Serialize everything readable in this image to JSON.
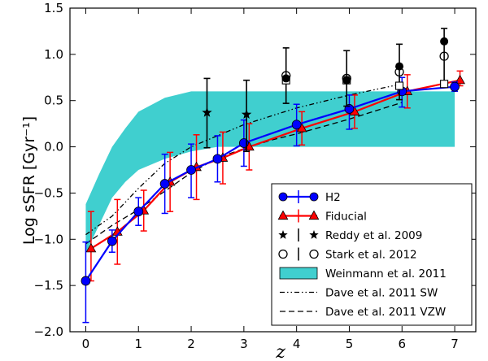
{
  "chart_data": {
    "type": "line",
    "xlabel": "z",
    "ylabel": "Log sSFR [Gyr⁻¹]",
    "xlim": [
      -0.3,
      7.4
    ],
    "ylim": [
      -2.0,
      1.5
    ],
    "x_ticks": [
      0,
      1,
      2,
      3,
      4,
      5,
      6,
      7
    ],
    "y_ticks": [
      -2.0,
      -1.5,
      -1.0,
      -0.5,
      0.0,
      0.5,
      1.0,
      1.5
    ],
    "x_tick_labels": [
      "0",
      "1",
      "2",
      "3",
      "4",
      "5",
      "6",
      "7"
    ],
    "y_tick_labels": [
      "−2.0",
      "−1.5",
      "−1.0",
      "−0.5",
      "0.0",
      "0.5",
      "1.0",
      "1.5"
    ],
    "legend_position": "lower-right",
    "colors": {
      "h2": "#0000ff",
      "fiducial": "#ff0000",
      "band": "#40cfcf",
      "black": "#000000"
    },
    "band": {
      "name": "Weinmann et al. 2011",
      "x": [
        0,
        0.25,
        0.5,
        0.75,
        1.0,
        1.5,
        2.0,
        2.5,
        3.0,
        4.0,
        5.0,
        6.0,
        7.0
      ],
      "upper": [
        -0.62,
        -0.3,
        0.0,
        0.2,
        0.38,
        0.53,
        0.6,
        0.6,
        0.6,
        0.6,
        0.6,
        0.6,
        0.6
      ],
      "lower": [
        -1.15,
        -0.85,
        -0.55,
        -0.38,
        -0.25,
        -0.13,
        -0.05,
        0.0,
        0.0,
        0.0,
        0.0,
        0.0,
        0.0
      ]
    },
    "series": [
      {
        "name": "H2",
        "x": [
          0.0,
          0.5,
          1.0,
          1.5,
          2.0,
          2.5,
          3.0,
          4.0,
          5.0,
          6.0,
          7.0
        ],
        "y": [
          -1.45,
          -1.02,
          -0.7,
          -0.4,
          -0.25,
          -0.13,
          0.04,
          0.24,
          0.41,
          0.6,
          0.65
        ],
        "err_lo": [
          0.45,
          0.12,
          0.15,
          0.32,
          0.3,
          0.25,
          0.25,
          0.23,
          0.22,
          0.17,
          0.05
        ],
        "err_hi": [
          0.42,
          0.12,
          0.15,
          0.32,
          0.28,
          0.25,
          0.25,
          0.22,
          0.15,
          0.15,
          0.05
        ]
      },
      {
        "name": "Fiducial",
        "x": [
          0.1,
          0.6,
          1.1,
          1.6,
          2.1,
          2.6,
          3.1,
          4.1,
          5.1,
          6.1,
          7.1
        ],
        "y": [
          -1.1,
          -0.92,
          -0.69,
          -0.38,
          -0.22,
          -0.12,
          0.0,
          0.2,
          0.38,
          0.6,
          0.72
        ],
        "err_lo": [
          0.35,
          0.35,
          0.22,
          0.32,
          0.35,
          0.28,
          0.25,
          0.18,
          0.18,
          0.18,
          0.06
        ],
        "err_hi": [
          0.4,
          0.35,
          0.22,
          0.32,
          0.35,
          0.28,
          0.25,
          0.18,
          0.18,
          0.18,
          0.1
        ]
      },
      {
        "name": "Reddy et al. 2009",
        "x": [
          2.3,
          3.05
        ],
        "y": [
          0.37,
          0.35
        ],
        "err_lo": [
          0.38,
          0.4
        ],
        "err_hi": [
          0.37,
          0.37
        ]
      },
      {
        "name": "Stark et al. 2012",
        "x": [
          3.8,
          4.95,
          5.95,
          6.8
        ],
        "y": [
          0.77,
          0.74,
          0.81,
          0.98
        ],
        "err_lo": [
          0.3,
          0.3,
          0.3,
          0.3
        ],
        "err_hi": [
          0.3,
          0.3,
          0.3,
          0.3
        ],
        "filled_markers": {
          "x": [
            3.8,
            4.95,
            5.95,
            6.8
          ],
          "y": [
            0.74,
            0.72,
            0.87,
            1.14
          ]
        },
        "square_markers": {
          "x": [
            3.8,
            4.95,
            5.95,
            6.8
          ],
          "y": [
            0.72,
            0.72,
            0.66,
            0.68
          ]
        }
      },
      {
        "name": "Dave et al. 2011 SW",
        "x": [
          0.0,
          0.5,
          1.0,
          1.5,
          2.0,
          2.5,
          3.0,
          3.5,
          4.0,
          5.0,
          6.0
        ],
        "y": [
          -0.95,
          -0.75,
          -0.45,
          -0.18,
          0.0,
          0.12,
          0.24,
          0.33,
          0.42,
          0.56,
          0.68
        ]
      },
      {
        "name": "Dave et al. 2011 VZW",
        "x": [
          0.0,
          0.5,
          1.0,
          1.5,
          2.0,
          2.5,
          3.0,
          3.5,
          4.0,
          5.0,
          6.0
        ],
        "y": [
          -1.05,
          -0.85,
          -0.68,
          -0.48,
          -0.28,
          -0.12,
          -0.02,
          0.07,
          0.14,
          0.3,
          0.48
        ]
      }
    ]
  }
}
